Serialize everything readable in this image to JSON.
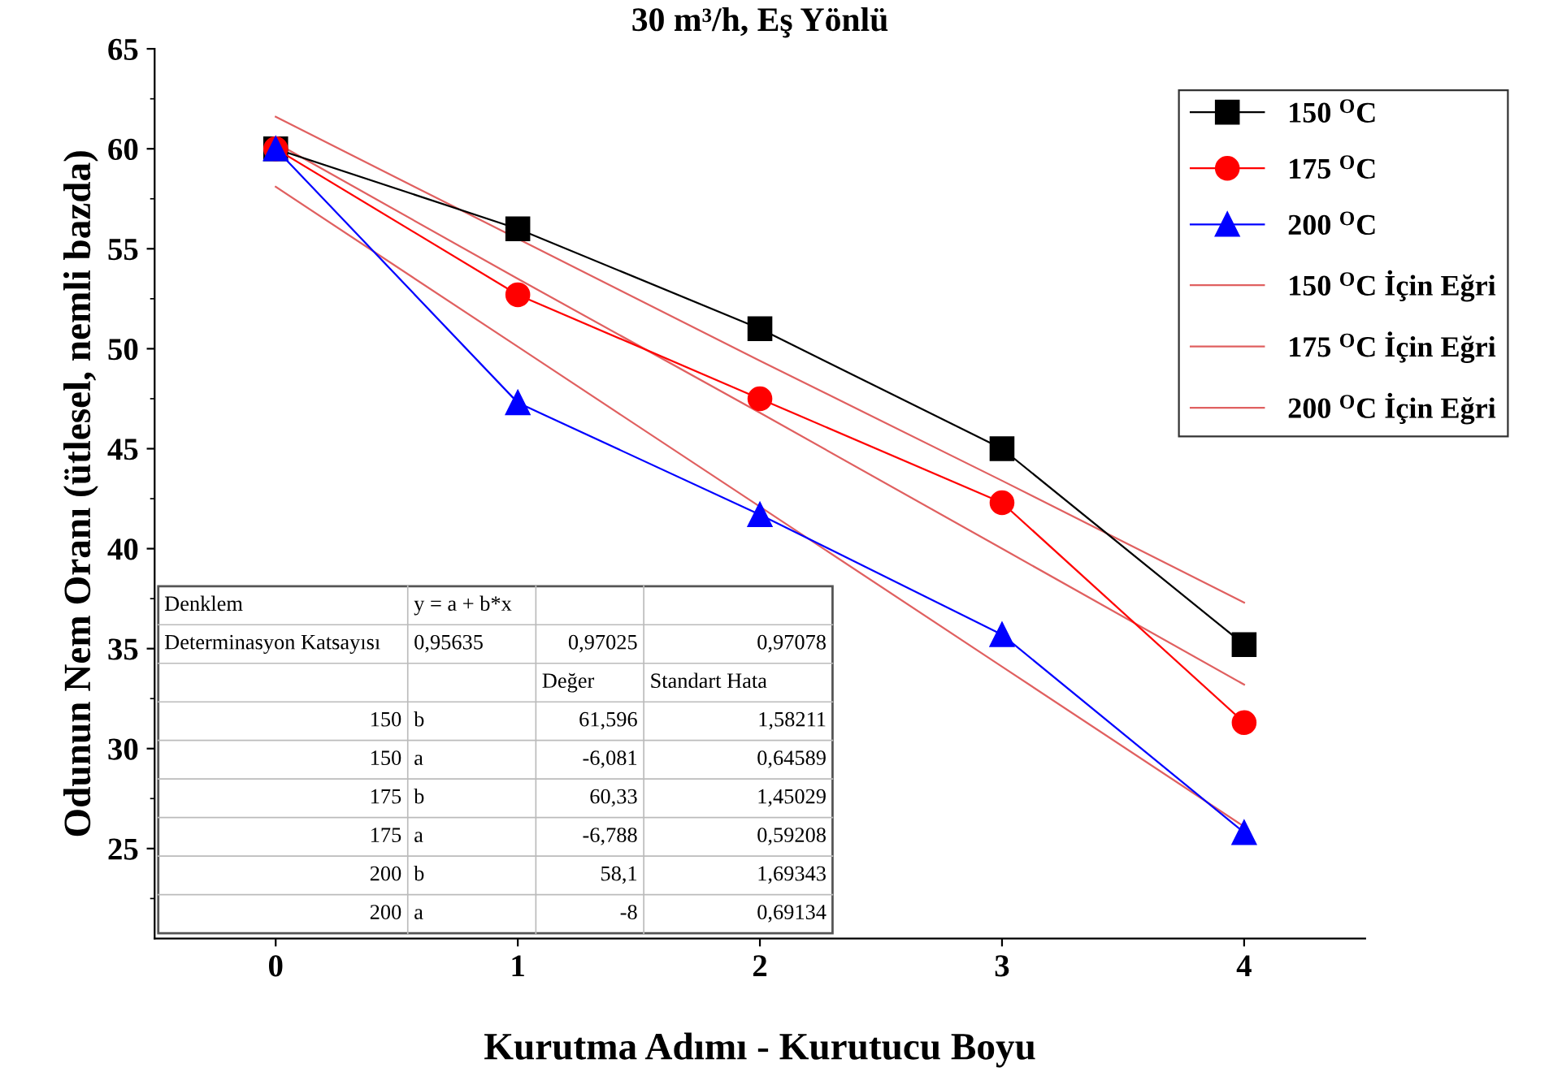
{
  "chart_data": {
    "type": "line",
    "title": "30 m³/h, Eş Yönlü",
    "xlabel": "Kurutma Adımı - Kurutucu Boyu",
    "ylabel": "Odunun Nem Oranı (ütlesel, nemli bazda)",
    "x": [
      0,
      1,
      2,
      3,
      4
    ],
    "series": [
      {
        "name": "150 $^{O}$C",
        "color": "#000000",
        "marker": "square",
        "values": [
          60,
          56,
          51,
          45,
          35.2
        ]
      },
      {
        "name": "175 $^{O}$C",
        "color": "#ff0000",
        "marker": "circle",
        "values": [
          60,
          52.7,
          47.5,
          42.3,
          31.3
        ]
      },
      {
        "name": "200 $^{O}$C",
        "color": "#0000ff",
        "marker": "triangle",
        "values": [
          60,
          47.3,
          41.7,
          35.7,
          25.8
        ]
      },
      {
        "name": "150 $^{O}$C İçin Eğri",
        "color": "#e06060",
        "marker": "none",
        "values": [
          61.6,
          55.5,
          49.4,
          43.4,
          37.3
        ]
      },
      {
        "name": "175 $^{O}$C İçin Eğri",
        "color": "#e06060",
        "marker": "none",
        "values": [
          60.3,
          53.5,
          46.8,
          40.0,
          33.2
        ]
      },
      {
        "name": "200 $^{O}$C İçin Eğri",
        "color": "#e06060",
        "marker": "none",
        "values": [
          58.1,
          50.1,
          42.1,
          34.1,
          26.1
        ]
      }
    ],
    "xlim": [
      -0.5,
      4.5
    ],
    "xticks": [
      0,
      1,
      2,
      3,
      4
    ],
    "ylim": [
      20.5,
      65
    ],
    "yticks": [
      25,
      30,
      35,
      40,
      45,
      50,
      55,
      60,
      65
    ],
    "grid": false,
    "legend": "top right",
    "line_style": "solid",
    "annotations": [
      "Denklem",
      "y = a + b*x",
      "Determinasyon Katsayısı",
      "0,95635",
      "0,97025",
      "0,97078",
      "Değer",
      "Standart Hata",
      "150",
      "b",
      "61,596",
      "1,58211",
      "150",
      "a",
      "-6,081",
      "0,64589",
      "175",
      "b",
      "60,33",
      "1,45029",
      "175",
      "a",
      "-6,788",
      "0,59208",
      "200",
      "b",
      "58,1",
      "1,69343",
      "200",
      "a",
      "-8",
      "0,69134"
    ]
  }
}
